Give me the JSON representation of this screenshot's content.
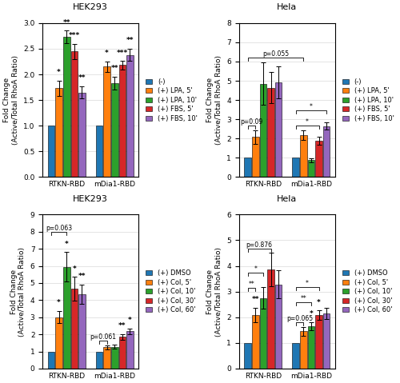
{
  "chart_data": [
    {
      "type": "bar",
      "title": "HEK293",
      "categories": [
        "RTKN-RBD",
        "mDia1-RBD"
      ],
      "ylabel": "Fold Change\n(Active/Total RhoA Ratio)",
      "series": [
        {
          "name": "(-)",
          "values": [
            1.0,
            1.0
          ],
          "errors": [
            0.0,
            0.0
          ]
        },
        {
          "name": "(+) LPA, 5'",
          "values": [
            1.73,
            2.15
          ],
          "errors": [
            0.15,
            0.1
          ]
        },
        {
          "name": "(+) LPA, 10'",
          "values": [
            2.73,
            1.83
          ],
          "errors": [
            0.12,
            0.12
          ]
        },
        {
          "name": "(+) FBS, 5'",
          "values": [
            2.45,
            2.18
          ],
          "errors": [
            0.15,
            0.08
          ]
        },
        {
          "name": "(+) FBS, 10'",
          "values": [
            1.65,
            2.38
          ],
          "errors": [
            0.12,
            0.12
          ]
        }
      ],
      "ylim": [
        0,
        3.0
      ],
      "yticks": [
        0.0,
        0.5,
        1.0,
        1.5,
        2.0,
        2.5,
        3.0
      ],
      "grid": true,
      "legend": "right",
      "annotations": [
        {
          "text": "*",
          "category": "RTKN-RBD",
          "series": "(+) LPA, 5'"
        },
        {
          "text": "**",
          "category": "RTKN-RBD",
          "series": "(+) LPA, 10'"
        },
        {
          "text": "***",
          "category": "RTKN-RBD",
          "series": "(+) FBS, 5'"
        },
        {
          "text": "**",
          "category": "RTKN-RBD",
          "series": "(+) FBS, 10'"
        },
        {
          "text": "*",
          "category": "mDia1-RBD",
          "series": "(+) LPA, 5'"
        },
        {
          "text": "**",
          "category": "mDia1-RBD",
          "series": "(+) LPA, 10'"
        },
        {
          "text": "***",
          "category": "mDia1-RBD",
          "series": "(+) FBS, 5'"
        },
        {
          "text": "**",
          "category": "mDia1-RBD",
          "series": "(+) FBS, 10'"
        }
      ]
    },
    {
      "type": "bar",
      "title": "Hela",
      "categories": [
        "RTKN-RBD",
        "mDia1-RBD"
      ],
      "ylabel": "Fold Change\n(Active/Total RhoA Ratio)",
      "series": [
        {
          "name": "(-)",
          "values": [
            1.0,
            1.0
          ],
          "errors": [
            0.0,
            0.0
          ]
        },
        {
          "name": "(+) LPA, 5'",
          "values": [
            2.08,
            2.18
          ],
          "errors": [
            0.35,
            0.25
          ]
        },
        {
          "name": "(+) LPA, 10'",
          "values": [
            4.85,
            0.88
          ],
          "errors": [
            1.1,
            0.1
          ]
        },
        {
          "name": "(+) FBS, 5'",
          "values": [
            4.65,
            1.88
          ],
          "errors": [
            0.8,
            0.22
          ]
        },
        {
          "name": "(+) FBS, 10'",
          "values": [
            4.92,
            2.65
          ],
          "errors": [
            0.85,
            0.18
          ]
        }
      ],
      "ylim": [
        0,
        8.0
      ],
      "yticks": [
        0,
        1,
        2,
        3,
        4,
        5,
        6,
        7,
        8
      ],
      "grid": true,
      "legend": "right",
      "annotations": [
        {
          "text": "p=0.09",
          "from": {
            "category": "RTKN-RBD",
            "series": "(-)"
          },
          "to": {
            "category": "RTKN-RBD",
            "series": "(+) LPA, 5'"
          }
        },
        {
          "text": "p=0.055",
          "from": {
            "category": "RTKN-RBD",
            "series": "(-)"
          },
          "to": {
            "category": "mDia1-RBD",
            "series": "(+) LPA, 5'"
          }
        },
        {
          "text": "*",
          "from": {
            "category": "mDia1-RBD",
            "series": "(-)"
          },
          "to": {
            "category": "mDia1-RBD",
            "series": "(+) FBS, 5'"
          }
        },
        {
          "text": "*",
          "from": {
            "category": "mDia1-RBD",
            "series": "(-)"
          },
          "to": {
            "category": "mDia1-RBD",
            "series": "(+) FBS, 10'"
          }
        }
      ]
    },
    {
      "type": "bar",
      "title": "HEK293",
      "categories": [
        "RTKN-RBD",
        "mDia1-RBD"
      ],
      "ylabel": "Fold Change\n(Active/Total RhoA Ratio)",
      "series": [
        {
          "name": "(+) DMSO",
          "values": [
            1.0,
            1.0
          ],
          "errors": [
            0.0,
            0.0
          ]
        },
        {
          "name": "(+) Col, 5'",
          "values": [
            3.0,
            1.25
          ],
          "errors": [
            0.35,
            0.12
          ]
        },
        {
          "name": "(+) Col, 10'",
          "values": [
            5.95,
            1.28
          ],
          "errors": [
            0.85,
            0.12
          ]
        },
        {
          "name": "(+) Col, 30'",
          "values": [
            4.65,
            1.85
          ],
          "errors": [
            0.7,
            0.18
          ]
        },
        {
          "name": "(+) Col, 60'",
          "values": [
            4.35,
            2.18
          ],
          "errors": [
            0.55,
            0.15
          ]
        }
      ],
      "ylim": [
        0,
        9.0
      ],
      "yticks": [
        0,
        1,
        2,
        3,
        4,
        5,
        6,
        7,
        8,
        9
      ],
      "grid": true,
      "legend": "right",
      "annotations": [
        {
          "text": "*",
          "category": "RTKN-RBD",
          "series": "(+) Col, 5'"
        },
        {
          "text": "*",
          "category": "RTKN-RBD",
          "series": "(+) Col, 10'"
        },
        {
          "text": "*",
          "category": "RTKN-RBD",
          "series": "(+) Col, 30'"
        },
        {
          "text": "**",
          "category": "RTKN-RBD",
          "series": "(+) Col, 60'"
        },
        {
          "text": "**",
          "category": "mDia1-RBD",
          "series": "(+) Col, 30'"
        },
        {
          "text": "*",
          "category": "mDia1-RBD",
          "series": "(+) Col, 60'"
        },
        {
          "text": "p=0.063",
          "from": {
            "category": "RTKN-RBD",
            "series": "(+) DMSO"
          },
          "to": {
            "category": "RTKN-RBD",
            "series": "(+) Col, 10'"
          }
        },
        {
          "text": "p=0.061",
          "from": {
            "category": "mDia1-RBD",
            "series": "(+) DMSO"
          },
          "to": {
            "category": "mDia1-RBD",
            "series": "(+) Col, 5'"
          }
        }
      ]
    },
    {
      "type": "bar",
      "title": "Hela",
      "categories": [
        "RTKN-RBD",
        "mDia1-RBD"
      ],
      "ylabel": "Fold Change\n(Active/Total RhoA Ratio)",
      "series": [
        {
          "name": "(+) DMSO",
          "values": [
            1.0,
            1.0
          ],
          "errors": [
            0.0,
            0.0
          ]
        },
        {
          "name": "(+) Col, 5'",
          "values": [
            2.08,
            1.45
          ],
          "errors": [
            0.28,
            0.18
          ]
        },
        {
          "name": "(+) Col, 10'",
          "values": [
            2.75,
            1.65
          ],
          "errors": [
            0.42,
            0.15
          ]
        },
        {
          "name": "(+) Col, 30'",
          "values": [
            3.85,
            2.08
          ],
          "errors": [
            0.65,
            0.18
          ]
        },
        {
          "name": "(+) Col, 60'",
          "values": [
            3.28,
            2.15
          ],
          "errors": [
            0.55,
            0.22
          ]
        }
      ],
      "ylim": [
        0,
        6.0
      ],
      "yticks": [
        0,
        1,
        2,
        3,
        4,
        5,
        6
      ],
      "grid": true,
      "legend": "right",
      "annotations": [
        {
          "text": "**",
          "category": "RTKN-RBD",
          "series": "(+) Col, 5'"
        },
        {
          "text": "*",
          "category": "mDia1-RBD",
          "series": "(+) Col, 10'"
        },
        {
          "text": "*",
          "category": "mDia1-RBD",
          "series": "(+) Col, 30'"
        },
        {
          "text": "p=0.876",
          "from": {
            "category": "RTKN-RBD",
            "series": "(+) DMSO"
          },
          "to": {
            "category": "RTKN-RBD",
            "series": "(+) Col, 30'"
          }
        },
        {
          "text": "*",
          "from": {
            "category": "RTKN-RBD",
            "series": "(+) DMSO"
          },
          "to": {
            "category": "RTKN-RBD",
            "series": "(+) Col, 10'"
          }
        },
        {
          "text": "**",
          "from": {
            "category": "RTKN-RBD",
            "series": "(+) DMSO"
          },
          "to": {
            "category": "RTKN-RBD",
            "series": "(+) Col, 5'"
          }
        },
        {
          "text": "p=0.065",
          "from": {
            "category": "mDia1-RBD",
            "series": "(+) DMSO"
          },
          "to": {
            "category": "mDia1-RBD",
            "series": "(+) Col, 5'"
          }
        },
        {
          "text": "*",
          "from": {
            "category": "mDia1-RBD",
            "series": "(+) DMSO"
          },
          "to": {
            "category": "mDia1-RBD",
            "series": "(+) Col, 30'"
          }
        },
        {
          "text": "**",
          "from": {
            "category": "mDia1-RBD",
            "series": "(+) DMSO"
          },
          "to": {
            "category": "mDia1-RBD",
            "series": "(+) Col, 10'"
          }
        }
      ]
    }
  ]
}
